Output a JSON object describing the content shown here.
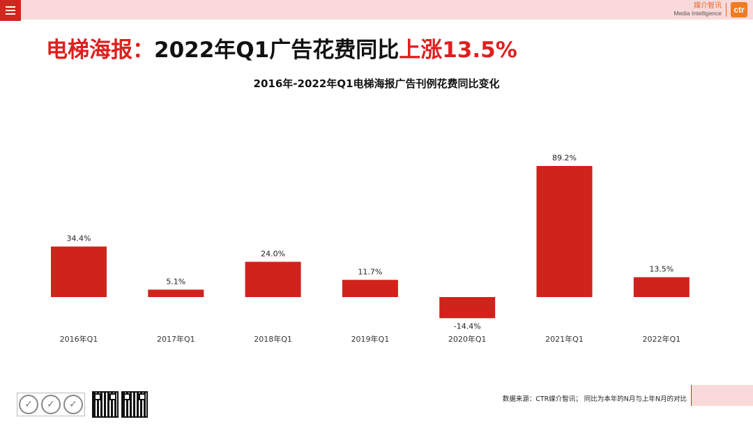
{
  "header": {
    "logo_cn": "媒介智讯",
    "logo_en": "Media Intelligence",
    "logo_mark": "ctr"
  },
  "headline": {
    "prefix": "电梯海报：",
    "middle": "2022年Q1广告花费同比",
    "highlight": "上涨13.5%"
  },
  "colors": {
    "bar": "#d0231c",
    "accent_red": "#e01e1e",
    "band_pink": "#f9d9d9"
  },
  "chart_data": {
    "type": "bar",
    "title": "2016年-2022年Q1电梯海报广告刊例花费同比变化",
    "categories": [
      "2016年Q1",
      "2017年Q1",
      "2018年Q1",
      "2019年Q1",
      "2020年Q1",
      "2021年Q1",
      "2022年Q1"
    ],
    "values": [
      34.4,
      5.1,
      24.0,
      11.7,
      -14.4,
      89.2,
      13.5
    ],
    "value_labels": [
      "34.4%",
      "5.1%",
      "24.0%",
      "11.7%",
      "-14.4%",
      "89.2%",
      "13.5%"
    ],
    "xlabel": "",
    "ylabel": "",
    "grid": false,
    "legend": "none"
  },
  "footer": {
    "source": "数据来源：CTR媒介智讯； 同比为本年的N月与上年N月的对比"
  }
}
